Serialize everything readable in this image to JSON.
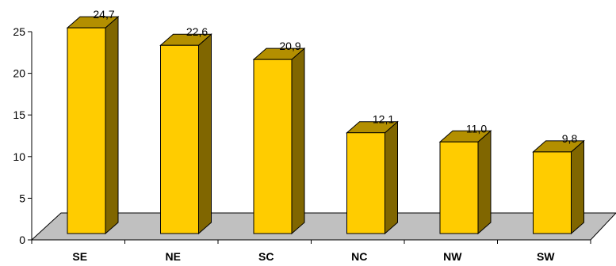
{
  "chart_data": {
    "type": "bar",
    "categories": [
      "SE",
      "NE",
      "SC",
      "NC",
      "NW",
      "SW"
    ],
    "values": [
      24.7,
      22.6,
      20.9,
      12.1,
      11.0,
      9.8
    ],
    "value_labels": [
      "24,7",
      "22,6",
      "20,9",
      "12,1",
      "11,0",
      "9,8"
    ],
    "y_ticks": [
      "0",
      "5",
      "10",
      "15",
      "20",
      "25"
    ],
    "ylim": [
      0,
      25
    ],
    "title": "",
    "xlabel": "",
    "ylabel": "",
    "grid": false,
    "legend": "none",
    "colors": {
      "bar_front": "#FFCC00",
      "bar_side": "#806600",
      "bar_top": "#B38F00",
      "floor": "#C0C0C0"
    }
  }
}
